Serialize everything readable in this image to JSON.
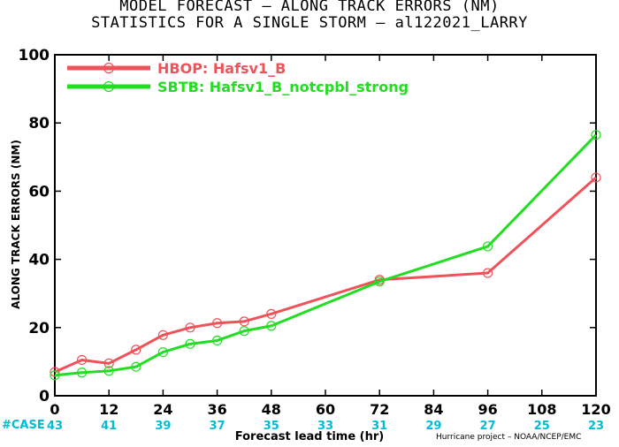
{
  "titles": {
    "line1": "MODEL FORECAST – ALONG TRACK ERRORS (NM)",
    "line2": "STATISTICS FOR A SINGLE STORM – al122021_LARRY"
  },
  "axes": {
    "ylabel": "ALONG TRACK ERRORS (NM)",
    "xlabel": "Forecast lead time (hr)"
  },
  "credit": "Hurricane project – NOAA/NCEP/EMC",
  "case_label": "#CASE",
  "chart_data": {
    "type": "line",
    "x_ticks": [
      0,
      12,
      24,
      36,
      48,
      60,
      72,
      84,
      96,
      108,
      120
    ],
    "y_ticks": [
      0,
      20,
      40,
      60,
      80,
      100
    ],
    "xlim": [
      0,
      120
    ],
    "ylim": [
      0,
      100
    ],
    "grid": false,
    "legend_position": "top-left",
    "series": [
      {
        "name": "HBOP: Hafsv1_B",
        "color": "#f0525a",
        "x": [
          0,
          6,
          12,
          18,
          24,
          30,
          36,
          42,
          48,
          72,
          96,
          120
        ],
        "y": [
          7,
          10.5,
          9.5,
          13.5,
          17.8,
          20,
          21.3,
          21.8,
          24,
          34,
          36,
          64
        ]
      },
      {
        "name": "SBTB: Hafsv1_B_notcpbl_strong",
        "color": "#22dd22",
        "x": [
          0,
          6,
          12,
          18,
          24,
          30,
          36,
          42,
          48,
          72,
          96,
          120
        ],
        "y": [
          6,
          6.8,
          7.3,
          8.5,
          12.8,
          15.2,
          16.2,
          19,
          20.5,
          33.5,
          43.8,
          76.5
        ]
      }
    ],
    "case_counts": {
      "x": [
        0,
        12,
        24,
        36,
        48,
        60,
        72,
        84,
        96,
        108,
        120
      ],
      "counts": [
        "43",
        "41",
        "39",
        "37",
        "35",
        "33",
        "31",
        "29",
        "27",
        "25",
        "23"
      ],
      "color": "#00bcd4"
    }
  }
}
